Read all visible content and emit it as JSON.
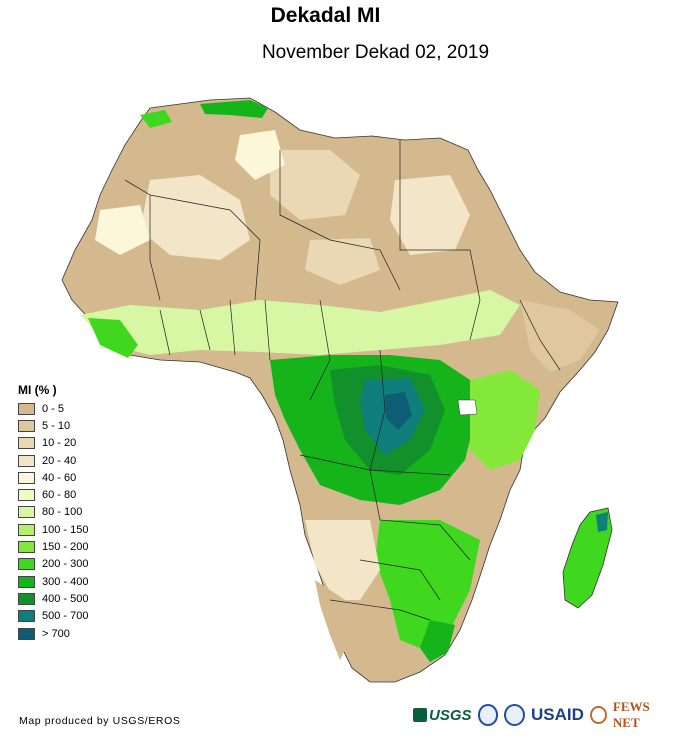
{
  "title": "Dekadal MI",
  "subtitle": "November Dekad 02, 2019",
  "legend": {
    "title": "MI (% )",
    "classes": [
      {
        "label": "0 - 5",
        "color": "#d3b98d"
      },
      {
        "label": "5 - 10",
        "color": "#e0c89e"
      },
      {
        "label": "10 - 20",
        "color": "#ead8b4"
      },
      {
        "label": "20 - 40",
        "color": "#f3e6c8"
      },
      {
        "label": "40 - 60",
        "color": "#fbf7d8"
      },
      {
        "label": "60 - 80",
        "color": "#f0fbc2"
      },
      {
        "label": "80 - 100",
        "color": "#d8f7a5"
      },
      {
        "label": "100 - 150",
        "color": "#b6ef6f"
      },
      {
        "label": "150 - 200",
        "color": "#84e83a"
      },
      {
        "label": "200 - 300",
        "color": "#3fd81f"
      },
      {
        "label": "300 - 400",
        "color": "#14b41a"
      },
      {
        "label": "400 - 500",
        "color": "#11902b"
      },
      {
        "label": "500 - 700",
        "color": "#0f7f7c"
      },
      {
        "label": "> 700",
        "color": "#0d5e75"
      }
    ]
  },
  "credit": "Map produced by USGS/EROS",
  "logos": {
    "usgs": "USGS",
    "usaid": "USAID",
    "fews": "FEWS NET"
  }
}
